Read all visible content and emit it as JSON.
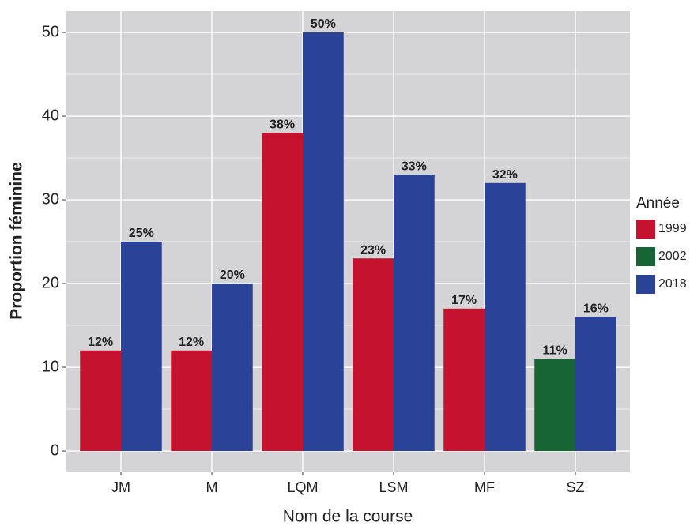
{
  "chart_data": {
    "type": "bar",
    "x_label": "Nom de la course",
    "y_label": "Proportion féminine",
    "categories": [
      "JM",
      "M",
      "LQM",
      "LSM",
      "MF",
      "SZ"
    ],
    "series": [
      {
        "name": "1999",
        "color": "#c4122f",
        "values": [
          12,
          12,
          38,
          23,
          17,
          null
        ],
        "value_labels": [
          "12%",
          "12%",
          "38%",
          "23%",
          "17%",
          null
        ]
      },
      {
        "name": "2002",
        "color": "#176534",
        "values": [
          null,
          null,
          null,
          null,
          null,
          11
        ],
        "value_labels": [
          null,
          null,
          null,
          null,
          null,
          "11%"
        ]
      },
      {
        "name": "2018",
        "color": "#2a4298",
        "values": [
          25,
          20,
          50,
          33,
          32,
          16
        ],
        "value_labels": [
          "25%",
          "20%",
          "50%",
          "33%",
          "32%",
          "16%"
        ]
      }
    ],
    "legend_title": "Année",
    "legend_position": "right",
    "ylim": [
      -2.45,
      52.55
    ],
    "yticks": [
      0,
      10,
      20,
      30,
      40,
      50
    ],
    "y_minor_ticks": [
      5,
      15,
      25,
      35,
      45
    ],
    "grid": true
  }
}
